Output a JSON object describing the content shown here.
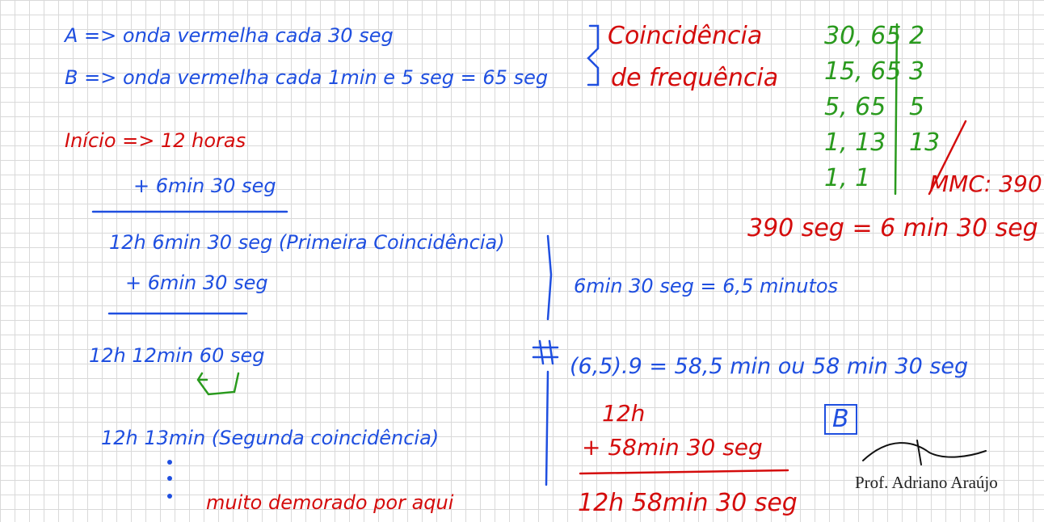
{
  "problem": {
    "a": "A => onda vermelha cada 30 seg",
    "b": "B => onda vermelha cada 1min e 5 seg = 65 seg",
    "topic1": "Coincidência",
    "topic2": "de frequência"
  },
  "mmc": {
    "rows": [
      [
        "30, 65",
        "2"
      ],
      [
        "15, 65",
        "3"
      ],
      [
        "5, 65",
        "5"
      ],
      [
        "1, 13",
        "13"
      ],
      [
        "1, 1",
        ""
      ]
    ],
    "result": "MMC: 390",
    "conversion": "390 seg = 6 min 30 seg"
  },
  "left": {
    "start": "Início => 12 horas",
    "add1": "+ 6min 30 seg",
    "first": "12h 6min 30 seg (Primeira Coincidência)",
    "add2": "+ 6min 30 seg",
    "sum": "12h 12min 60 seg",
    "second": "12h 13min (Segunda coincidência)",
    "note": "muito demorado por aqui"
  },
  "right": {
    "minutes": "6min 30 seg = 6,5 minutos",
    "calc": "(6,5).9 = 58,5 min ou 58 min 30 seg",
    "start": "12h",
    "add": "+ 58min 30 seg",
    "total": "12h 58min 30 seg",
    "answer": "B"
  },
  "signature": "Prof. Adriano Araújo"
}
